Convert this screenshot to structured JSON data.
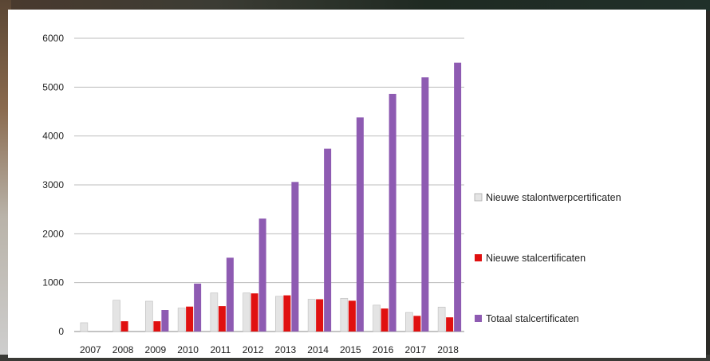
{
  "chart_data": {
    "type": "bar",
    "categories": [
      "2007",
      "2008",
      "2009",
      "2010",
      "2011",
      "2012",
      "2013",
      "2014",
      "2015",
      "2016",
      "2017",
      "2018"
    ],
    "series": [
      {
        "name": "Nieuwe stalontwerpcertificaten",
        "color": "#e4e4e4",
        "values": [
          180,
          640,
          620,
          480,
          790,
          790,
          720,
          660,
          680,
          540,
          390,
          500
        ]
      },
      {
        "name": "Nieuwe stalcertificaten",
        "color": "#e01010",
        "values": [
          0,
          210,
          210,
          510,
          520,
          780,
          740,
          660,
          630,
          470,
          320,
          290
        ]
      },
      {
        "name": "Totaal stalcertificaten",
        "color": "#8e5bb2",
        "values": [
          0,
          0,
          440,
          980,
          1510,
          2310,
          3060,
          3740,
          4380,
          4860,
          5200,
          5500
        ]
      }
    ],
    "ylim": [
      0,
      6000
    ],
    "yticks": [
      "0",
      "1000",
      "2000",
      "3000",
      "4000",
      "5000",
      "6000"
    ],
    "grid": true,
    "legend_position": "right"
  }
}
